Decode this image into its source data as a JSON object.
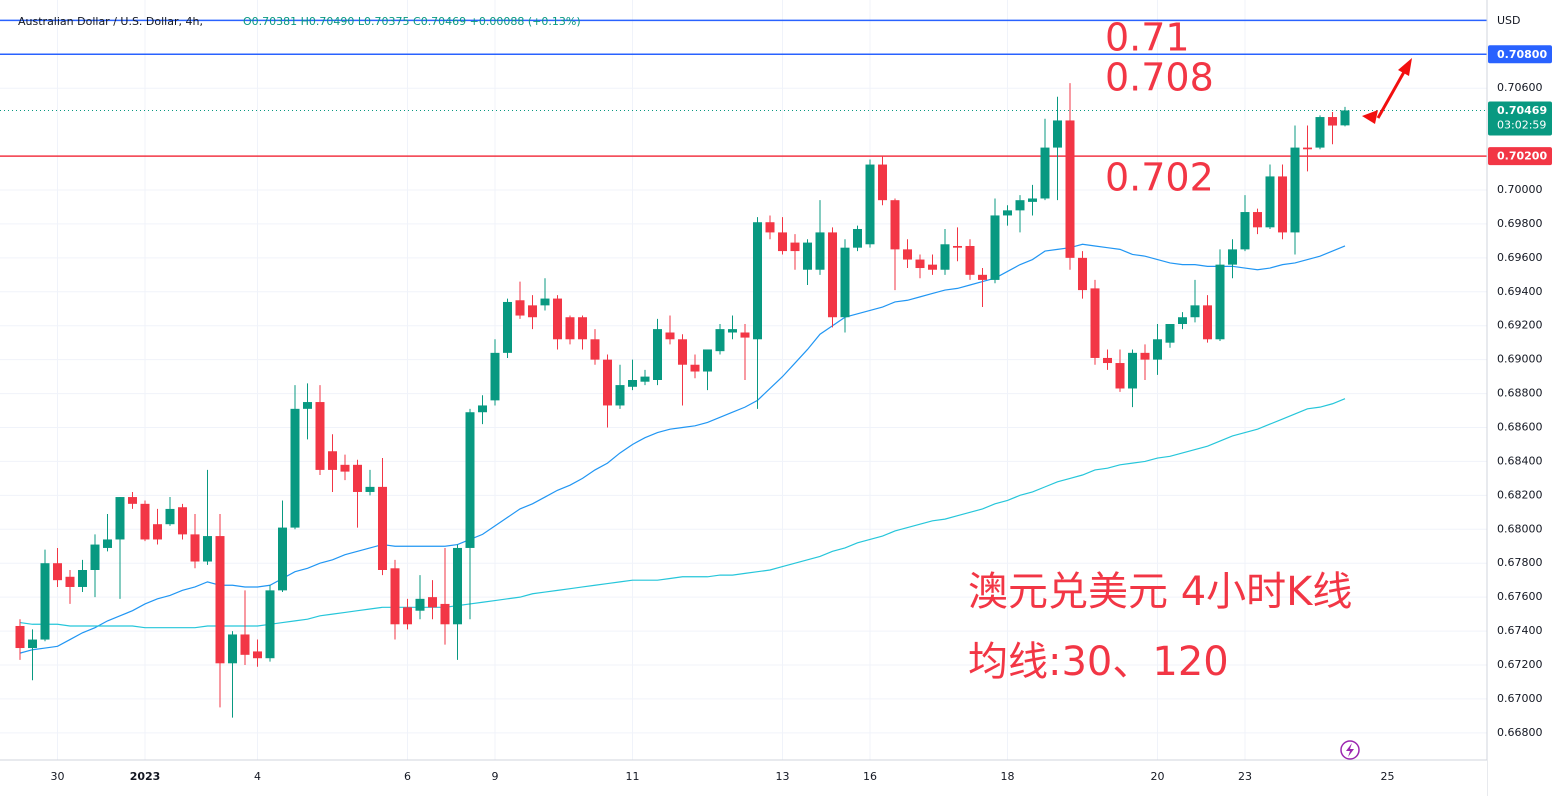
{
  "chart_data": {
    "type": "candlestick",
    "title": "Australian Dollar / U.S. Dollar, 4h,",
    "subtitle": "O0.70381 H0.70490 L0.70375 C0.70469 +0.00088 (+0.13%)",
    "currency": "USD",
    "up_color": "#089981",
    "down_color": "#f23645",
    "categories": [
      null,
      null,
      null,
      "30",
      null,
      null,
      null,
      null,
      null,
      null,
      "2023",
      null,
      null,
      null,
      null,
      null,
      null,
      null,
      null,
      "4",
      null,
      null,
      null,
      null,
      null,
      null,
      null,
      null,
      null,
      null,
      null,
      "6",
      null,
      null,
      null,
      null,
      null,
      null,
      "9",
      null,
      null,
      null,
      null,
      null,
      null,
      null,
      null,
      null,
      null,
      "11",
      null,
      null,
      null,
      null,
      null,
      null,
      null,
      null,
      null,
      null,
      null,
      "13",
      null,
      null,
      null,
      null,
      null,
      null,
      "16",
      null,
      null,
      null,
      null,
      null,
      null,
      null,
      null,
      null,
      null,
      "18",
      null,
      null,
      null,
      null,
      null,
      null,
      null,
      null,
      null,
      null,
      null,
      "20",
      null,
      null,
      null,
      null,
      null,
      null,
      "23",
      null,
      null,
      null,
      null,
      null,
      null,
      null,
      null
    ],
    "after_last_label": "25",
    "open": [
      0.6743,
      0.673,
      0.6735,
      0.678,
      0.6772,
      0.6766,
      0.6776,
      0.6789,
      0.6794,
      0.6819,
      0.6815,
      0.6803,
      0.6803,
      0.6813,
      0.6797,
      0.6781,
      0.6796,
      0.6721,
      0.6738,
      0.6728,
      0.6724,
      0.6764,
      0.6801,
      0.6871,
      0.6875,
      0.6846,
      0.6838,
      0.6838,
      0.6822,
      0.6825,
      0.6777,
      0.6754,
      0.6752,
      0.676,
      0.6756,
      0.6744,
      0.6789,
      0.6869,
      0.6876,
      0.6904,
      0.6935,
      0.6932,
      0.6932,
      0.6936,
      0.6925,
      0.6925,
      0.6912,
      0.69,
      0.6873,
      0.6884,
      0.6887,
      0.6888,
      0.6916,
      0.6912,
      0.6897,
      0.6893,
      0.6905,
      0.6916,
      0.6916,
      0.6912,
      0.6981,
      0.6975,
      0.6969,
      0.6953,
      0.6953,
      0.6975,
      0.6925,
      0.6966,
      0.6968,
      0.7015,
      0.6994,
      0.6965,
      0.6959,
      0.6956,
      0.6953,
      0.6967,
      0.6967,
      0.695,
      0.6947,
      0.6985,
      0.6988,
      0.6993,
      0.6995,
      0.7025,
      0.7041,
      0.696,
      0.6942,
      0.6901,
      0.6898,
      0.6883,
      0.6904,
      0.69,
      0.691,
      0.6921,
      0.6925,
      0.6932,
      0.6912,
      0.6956,
      0.6965,
      0.6987,
      0.6978,
      0.7008,
      0.6975,
      0.7025,
      0.7025,
      0.7043,
      0.70381
    ],
    "high": [
      0.6747,
      0.6741,
      0.6788,
      0.6789,
      0.6776,
      0.6782,
      0.6797,
      0.6809,
      0.6819,
      0.6822,
      0.6817,
      0.6812,
      0.6819,
      0.6815,
      0.6809,
      0.6835,
      0.6809,
      0.674,
      0.6764,
      0.6735,
      0.6767,
      0.6817,
      0.6885,
      0.6886,
      0.6885,
      0.6856,
      0.6844,
      0.6841,
      0.6835,
      0.6842,
      0.6782,
      0.6759,
      0.6773,
      0.677,
      0.6789,
      0.6791,
      0.6871,
      0.6879,
      0.6912,
      0.6936,
      0.6946,
      0.6938,
      0.6948,
      0.6938,
      0.6926,
      0.6926,
      0.6918,
      0.6903,
      0.6897,
      0.69,
      0.6894,
      0.6924,
      0.6926,
      0.6915,
      0.6903,
      0.6906,
      0.6921,
      0.6926,
      0.6921,
      0.6984,
      0.6985,
      0.6984,
      0.6974,
      0.6971,
      0.6994,
      0.6978,
      0.6971,
      0.6979,
      0.7018,
      0.702,
      0.6995,
      0.6971,
      0.6962,
      0.6962,
      0.6977,
      0.6978,
      0.6971,
      0.6954,
      0.6995,
      0.6991,
      0.6997,
      0.7003,
      0.7042,
      0.7055,
      0.7063,
      0.6964,
      0.6947,
      0.6906,
      0.6906,
      0.6906,
      0.6909,
      0.6921,
      0.6921,
      0.6928,
      0.6947,
      0.6938,
      0.6965,
      0.6971,
      0.6997,
      0.6989,
      0.7015,
      0.7015,
      0.7038,
      0.7038,
      0.7044,
      0.7046,
      0.7049
    ],
    "low": [
      0.6723,
      0.6711,
      0.6734,
      0.6766,
      0.6756,
      0.6763,
      0.676,
      0.6787,
      0.6759,
      0.6812,
      0.6793,
      0.6791,
      0.6802,
      0.6794,
      0.6777,
      0.6779,
      0.6695,
      0.6689,
      0.672,
      0.6719,
      0.6722,
      0.6763,
      0.68,
      0.6853,
      0.6832,
      0.6822,
      0.6829,
      0.6801,
      0.682,
      0.6773,
      0.6735,
      0.6741,
      0.6747,
      0.6747,
      0.6732,
      0.6723,
      0.6747,
      0.6862,
      0.6873,
      0.6901,
      0.6924,
      0.6918,
      0.6929,
      0.6906,
      0.6909,
      0.6906,
      0.6897,
      0.686,
      0.6871,
      0.6882,
      0.6885,
      0.6885,
      0.6909,
      0.6873,
      0.6889,
      0.6882,
      0.6903,
      0.6912,
      0.6888,
      0.6871,
      0.6971,
      0.6962,
      0.6953,
      0.6944,
      0.695,
      0.6919,
      0.6916,
      0.6964,
      0.6966,
      0.6991,
      0.6941,
      0.6954,
      0.6948,
      0.695,
      0.695,
      0.6958,
      0.6947,
      0.6931,
      0.6945,
      0.6979,
      0.6975,
      0.6985,
      0.6994,
      0.6994,
      0.6953,
      0.6936,
      0.6897,
      0.6894,
      0.6881,
      0.6872,
      0.6888,
      0.6891,
      0.6907,
      0.6918,
      0.6922,
      0.691,
      0.6911,
      0.6948,
      0.6964,
      0.6974,
      0.6977,
      0.6971,
      0.6962,
      0.7011,
      0.7024,
      0.7027,
      0.70375
    ],
    "close": [
      0.673,
      0.6735,
      0.678,
      0.677,
      0.6766,
      0.6776,
      0.6791,
      0.6794,
      0.6819,
      0.6815,
      0.6794,
      0.6794,
      0.6812,
      0.6797,
      0.6781,
      0.6796,
      0.6721,
      0.6738,
      0.6726,
      0.6724,
      0.6764,
      0.6801,
      0.6871,
      0.6875,
      0.6835,
      0.6835,
      0.6834,
      0.6822,
      0.6825,
      0.6776,
      0.6744,
      0.6744,
      0.6759,
      0.6754,
      0.6744,
      0.6789,
      0.6869,
      0.6873,
      0.6904,
      0.6934,
      0.6926,
      0.6925,
      0.6936,
      0.6912,
      0.6912,
      0.6912,
      0.69,
      0.6873,
      0.6885,
      0.6888,
      0.689,
      0.6918,
      0.6912,
      0.6897,
      0.6893,
      0.6906,
      0.6918,
      0.6918,
      0.6913,
      0.6981,
      0.6975,
      0.6964,
      0.6964,
      0.6969,
      0.6975,
      0.6925,
      0.6966,
      0.6977,
      0.7015,
      0.6994,
      0.6965,
      0.6959,
      0.6954,
      0.6953,
      0.6968,
      0.6966,
      0.695,
      0.6947,
      0.6985,
      0.6988,
      0.6994,
      0.6995,
      0.7025,
      0.7041,
      0.696,
      0.6941,
      0.6901,
      0.6898,
      0.6883,
      0.6904,
      0.69,
      0.6912,
      0.6921,
      0.6925,
      0.6932,
      0.6912,
      0.6956,
      0.6965,
      0.6987,
      0.6978,
      0.7008,
      0.6975,
      0.7025,
      0.7024,
      0.7043,
      0.7038,
      0.70469
    ],
    "moving_averages": [
      {
        "color": "#2196f3",
        "values": [
          0.6727,
          0.6729,
          0.673,
          0.6731,
          0.6735,
          0.6739,
          0.6742,
          0.6746,
          0.6749,
          0.6752,
          0.6756,
          0.6759,
          0.6761,
          0.6764,
          0.6766,
          0.6769,
          0.6767,
          0.6767,
          0.6766,
          0.6766,
          0.6767,
          0.6771,
          0.6775,
          0.6777,
          0.678,
          0.6782,
          0.6785,
          0.6787,
          0.6789,
          0.6791,
          0.679,
          0.679,
          0.679,
          0.679,
          0.679,
          0.6791,
          0.6794,
          0.6797,
          0.6802,
          0.6807,
          0.6812,
          0.6815,
          0.6819,
          0.6823,
          0.6826,
          0.683,
          0.6835,
          0.6839,
          0.6845,
          0.685,
          0.6854,
          0.6857,
          0.6859,
          0.686,
          0.6861,
          0.6863,
          0.6866,
          0.6869,
          0.6872,
          0.6876,
          0.6883,
          0.689,
          0.6898,
          0.6906,
          0.6915,
          0.692,
          0.6925,
          0.6927,
          0.6929,
          0.6931,
          0.6934,
          0.6935,
          0.6937,
          0.6939,
          0.6941,
          0.6942,
          0.6944,
          0.6946,
          0.6948,
          0.6952,
          0.6956,
          0.6959,
          0.6964,
          0.6965,
          0.6966,
          0.6968,
          0.6967,
          0.6966,
          0.6965,
          0.6962,
          0.6961,
          0.6959,
          0.6957,
          0.6956,
          0.6956,
          0.6955,
          0.6955,
          0.6955,
          0.6954,
          0.6953,
          0.6954,
          0.6956,
          0.6957,
          0.6959,
          0.6961,
          0.6964,
          0.6967
        ]
      },
      {
        "color": "#26c6da",
        "values": [
          0.6745,
          0.6744,
          0.6744,
          0.6744,
          0.6743,
          0.6743,
          0.6743,
          0.6743,
          0.6743,
          0.6743,
          0.6742,
          0.6742,
          0.6742,
          0.6742,
          0.6742,
          0.6743,
          0.6743,
          0.6743,
          0.6743,
          0.6743,
          0.6744,
          0.6745,
          0.6746,
          0.6747,
          0.6749,
          0.675,
          0.6751,
          0.6752,
          0.6753,
          0.6754,
          0.6754,
          0.6754,
          0.6754,
          0.6754,
          0.6754,
          0.6755,
          0.6756,
          0.6757,
          0.6758,
          0.6759,
          0.676,
          0.6762,
          0.6763,
          0.6764,
          0.6765,
          0.6766,
          0.6767,
          0.6768,
          0.6769,
          0.677,
          0.677,
          0.677,
          0.6771,
          0.6772,
          0.6772,
          0.6772,
          0.6773,
          0.6773,
          0.6774,
          0.6775,
          0.6776,
          0.6778,
          0.678,
          0.6782,
          0.6784,
          0.6787,
          0.6789,
          0.6792,
          0.6794,
          0.6796,
          0.6799,
          0.6801,
          0.6803,
          0.6805,
          0.6806,
          0.6808,
          0.681,
          0.6812,
          0.6815,
          0.6817,
          0.682,
          0.6822,
          0.6825,
          0.6828,
          0.683,
          0.6832,
          0.6835,
          0.6836,
          0.6838,
          0.6839,
          0.684,
          0.6842,
          0.6843,
          0.6845,
          0.6847,
          0.6849,
          0.6852,
          0.6855,
          0.6857,
          0.6859,
          0.6862,
          0.6865,
          0.6868,
          0.6871,
          0.6872,
          0.6874,
          0.6877
        ]
      }
    ],
    "levels": [
      {
        "value": 0.71,
        "color": "#2962ff"
      },
      {
        "value": 0.708,
        "label": "0.70800",
        "color": "#2962ff"
      },
      {
        "value": 0.702,
        "label": "0.70200",
        "color": "#f23645"
      }
    ],
    "last_price": {
      "value": 0.70469,
      "label": "0.70469",
      "countdown": "03:02:59",
      "color": "#089981"
    },
    "annotations": [
      "0.71",
      "0.708",
      "0.702",
      "澳元兑美元 4小时K线",
      "均线:30、120"
    ],
    "annotation_color": "#f23645",
    "ylim": [
      0.6664,
      0.7112
    ],
    "yticks": [
      {
        "value": 0.668,
        "label": "0.66800"
      },
      {
        "value": 0.67,
        "label": "0.67000"
      },
      {
        "value": 0.672,
        "label": "0.67200"
      },
      {
        "value": 0.674,
        "label": "0.67400"
      },
      {
        "value": 0.676,
        "label": "0.67600"
      },
      {
        "value": 0.678,
        "label": "0.67800"
      },
      {
        "value": 0.68,
        "label": "0.68000"
      },
      {
        "value": 0.682,
        "label": "0.68200"
      },
      {
        "value": 0.684,
        "label": "0.68400"
      },
      {
        "value": 0.686,
        "label": "0.68600"
      },
      {
        "value": 0.688,
        "label": "0.68800"
      },
      {
        "value": 0.69,
        "label": "0.69000"
      },
      {
        "value": 0.692,
        "label": "0.69200"
      },
      {
        "value": 0.694,
        "label": "0.69400"
      },
      {
        "value": 0.696,
        "label": "0.69600"
      },
      {
        "value": 0.698,
        "label": "0.69800"
      },
      {
        "value": 0.7,
        "label": "0.70000"
      },
      {
        "value": 0.706,
        "label": "0.70600"
      }
    ],
    "grid": true
  }
}
